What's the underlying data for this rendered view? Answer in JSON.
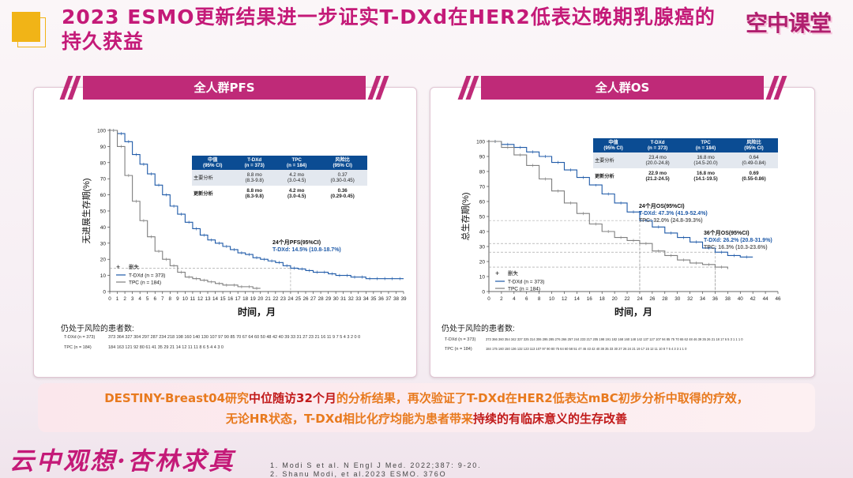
{
  "title": "2023 ESMO更新结果进一步证实T-DXd在HER2低表达晚期乳腺癌的持久获益",
  "logo": "空中课堂",
  "pfs": {
    "banner": "全人群PFS",
    "ylabel": "无进展生存期(%)",
    "xlabel": "时间，月",
    "yticks": [
      "100",
      "90",
      "80",
      "70",
      "60",
      "50",
      "40",
      "30",
      "20",
      "10",
      "0"
    ],
    "xticks": [
      "0",
      "1",
      "2",
      "3",
      "4",
      "5",
      "6",
      "7",
      "8",
      "9",
      "10",
      "11",
      "12",
      "13",
      "14",
      "15",
      "16",
      "17",
      "18",
      "19",
      "20",
      "21",
      "22",
      "23",
      "24",
      "25",
      "26",
      "27",
      "28",
      "29",
      "30",
      "31",
      "32",
      "33",
      "34",
      "35",
      "36",
      "37",
      "38",
      "39"
    ],
    "table": {
      "headers": [
        "中值\n(95% CI)",
        "T-DXd\n(n = 373)",
        "TPC\n(n = 184)",
        "风险比\n(95% CI)"
      ],
      "rows": [
        {
          "label": "主要分析",
          "tdxd": "8.8 mo\n(8.3-9.8)",
          "tpc": "4.2 mo\n(3.0-4.5)",
          "hr": "0.37\n(0.30-0.45)"
        },
        {
          "label": "更新分析",
          "tdxd": "8.8 mo\n(8.3-9.8)",
          "tpc": "4.2 mo\n(3.0-4.5)",
          "hr": "0.36\n(0.29-0.45)"
        }
      ]
    },
    "callout_title": "24个月PFS(95%CI)",
    "callout_tdxd": "T-DXd: 14.5% (10.8-18.7%)",
    "legend": {
      "censor": "删失",
      "tdxd": "T-DXd (n = 373)",
      "tpc": "TPC (n = 184)"
    },
    "risk_title": "仍处于风险的患者数:",
    "risk_tdxd_label": "T-DXd (n = 373)",
    "risk_tpc_label": "TPC (n = 184)",
    "risk_tdxd": "373 364 327 304 297 287 234 218 198 160 140 130 107 97 90 85 70 67 64 60 50 48 42 40 39 33 31 27 23 21 16 11 9 7 5 4 3 2 0 0",
    "risk_tpc": "184 163 121 92 80 61 41 35 29 21 14 12 11 11 8 6 5 4 4 3 0"
  },
  "os": {
    "banner": "全人群OS",
    "ylabel": "总生存期(%)",
    "xlabel": "时间，月",
    "yticks": [
      "100",
      "90",
      "80",
      "70",
      "60",
      "50",
      "40",
      "30",
      "20",
      "10",
      "0"
    ],
    "xticks": [
      "0",
      "2",
      "4",
      "6",
      "8",
      "10",
      "12",
      "14",
      "16",
      "18",
      "20",
      "22",
      "24",
      "26",
      "28",
      "30",
      "32",
      "34",
      "36",
      "38",
      "40",
      "42",
      "44",
      "46"
    ],
    "table": {
      "headers": [
        "中值\n(95% CI)",
        "T-DXd\n(n = 373)",
        "TPC\n(n = 184)",
        "风险比\n(95% CI)"
      ],
      "rows": [
        {
          "label": "主要分析",
          "tdxd": "23.4 mo\n(20.0-24.8)",
          "tpc": "16.8 mo\n(14.5-20.0)",
          "hr": "0.64\n(0.49-0.84)"
        },
        {
          "label": "更新分析",
          "tdxd": "22.9 mo\n(21.2-24.5)",
          "tpc": "16.8 mo\n(14.1-19.5)",
          "hr": "0.69\n(0.55-0.86)"
        }
      ]
    },
    "callout24_title": "24个月OS(95%CI)",
    "callout24_tdxd": "T-DXd: 47.3% (41.9-52.4%)",
    "callout24_tpc": "TPC: 32.0% (24.8-39.3%)",
    "callout36_title": "36个月OS(95%CI)",
    "callout36_tdxd": "T-DXd: 26.2% (20.8-31.9%)",
    "callout36_tpc": "TPC: 16.3% (10.3-23.6%)",
    "legend": {
      "censor": "删失",
      "tdxd": "T-DXd (n = 373)",
      "tpc": "TPC (n = 184)"
    },
    "risk_title": "仍处于风险的患者数:",
    "risk_tdxd_label": "T-DXd (n = 373)",
    "risk_tpc_label": "TPC (n = 184)",
    "risk_tdxd": "373 366 360 354 342 337 325 314 306 295 285 276 266 257 244 233 217 205 198 191 182 168 160 148 142 137 127 107 94 85 75 70 65 62 48 46 39 35 26 21 18 17 6 5 3 1 1 1 0",
    "risk_tpc": "184 175 160 150 136 132 123 113 107 97 90 80 75 64 60 58 51 47 46 43 42 40 38 35 33 30 27 26 24 21 19 17 15 12 11 10 8 7 5 4 3 3 1 1 0"
  },
  "conclusion": {
    "p1": "DESTINY-Breast04研究",
    "p1_hl": "中位随访32个月",
    "p2": "的分析结果，再次验证了T-DXd在HER2低表达mBC初步分析中取得的疗效，",
    "p3": "无论HR状态，T-DXd相比化疗均能为患者带来",
    "p3_hl": "持续的有临床意义的生存改善"
  },
  "slogan": "云中观想·杏林求真",
  "refs": [
    "1.  Modi S et al. N Engl J Med. 2022;387: 9-20.",
    "2.  Shanu Modi, et al.2023 ESMO. 376O"
  ],
  "chart_data": [
    {
      "type": "line",
      "title": "全人群PFS",
      "xlabel": "时间，月",
      "ylabel": "无进展生存期(%)",
      "xlim": [
        0,
        39
      ],
      "ylim": [
        0,
        100
      ],
      "series": [
        {
          "name": "T-DXd (n = 373)",
          "color": "#1f5aa8",
          "x": [
            0,
            1,
            2,
            3,
            4,
            5,
            6,
            7,
            8,
            9,
            10,
            11,
            12,
            13,
            14,
            15,
            16,
            17,
            18,
            19,
            20,
            21,
            22,
            23,
            24,
            25,
            26,
            27,
            28,
            29,
            30,
            31,
            32,
            33,
            34,
            35,
            36,
            37,
            38,
            39
          ],
          "y": [
            100,
            98,
            93,
            85,
            79,
            73,
            66,
            60,
            53,
            48,
            43,
            39,
            35,
            32,
            30,
            28,
            26,
            24,
            23,
            21,
            20,
            19,
            18,
            16,
            14.5,
            14,
            13,
            12,
            12,
            11,
            10,
            10,
            9,
            9,
            8,
            8,
            8,
            8,
            8,
            8
          ]
        },
        {
          "name": "TPC (n = 184)",
          "color": "#7f7f7f",
          "x": [
            0,
            1,
            2,
            3,
            4,
            5,
            6,
            7,
            8,
            9,
            10,
            11,
            12,
            13,
            14,
            15,
            16,
            17,
            18,
            19,
            20
          ],
          "y": [
            100,
            90,
            72,
            56,
            44,
            34,
            25,
            20,
            16,
            12,
            9,
            8,
            7,
            6,
            5,
            4,
            4,
            3,
            3,
            2,
            2
          ]
        }
      ]
    },
    {
      "type": "line",
      "title": "全人群OS",
      "xlabel": "时间，月",
      "ylabel": "总生存期(%)",
      "xlim": [
        0,
        46
      ],
      "ylim": [
        0,
        100
      ],
      "series": [
        {
          "name": "T-DXd (n = 373)",
          "color": "#1f5aa8",
          "x": [
            0,
            2,
            4,
            6,
            8,
            10,
            12,
            14,
            16,
            18,
            20,
            22,
            24,
            26,
            28,
            30,
            32,
            34,
            36,
            38,
            40,
            42
          ],
          "y": [
            100,
            98,
            96,
            93,
            90,
            86,
            81,
            76,
            71,
            65,
            59,
            53,
            47.3,
            43,
            39,
            36,
            33,
            29,
            26.2,
            24,
            23,
            23
          ]
        },
        {
          "name": "TPC (n = 184)",
          "color": "#7f7f7f",
          "x": [
            0,
            2,
            4,
            6,
            8,
            10,
            12,
            14,
            16,
            18,
            20,
            22,
            24,
            26,
            28,
            30,
            32,
            34,
            36,
            38
          ],
          "y": [
            100,
            96,
            91,
            84,
            75,
            67,
            59,
            52,
            45,
            40,
            36,
            34,
            32,
            27,
            24,
            21,
            19,
            18,
            16.3,
            15
          ]
        }
      ]
    }
  ]
}
